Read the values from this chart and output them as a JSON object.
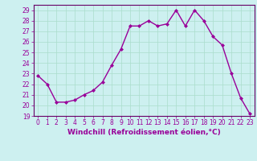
{
  "x": [
    0,
    1,
    2,
    3,
    4,
    5,
    6,
    7,
    8,
    9,
    10,
    11,
    12,
    13,
    14,
    15,
    16,
    17,
    18,
    19,
    20,
    21,
    22,
    23
  ],
  "y": [
    22.8,
    22.0,
    20.3,
    20.3,
    20.5,
    21.0,
    21.4,
    22.2,
    23.8,
    25.3,
    27.5,
    27.5,
    28.0,
    27.5,
    27.7,
    29.0,
    27.5,
    29.0,
    28.0,
    26.5,
    25.7,
    23.0,
    20.7,
    19.2
  ],
  "line_color": "#990099",
  "marker": "D",
  "markersize": 2.0,
  "linewidth": 1.0,
  "xlim": [
    -0.5,
    23.5
  ],
  "ylim": [
    19,
    29.5
  ],
  "yticks": [
    19,
    20,
    21,
    22,
    23,
    24,
    25,
    26,
    27,
    28,
    29
  ],
  "xticks": [
    0,
    1,
    2,
    3,
    4,
    5,
    6,
    7,
    8,
    9,
    10,
    11,
    12,
    13,
    14,
    15,
    16,
    17,
    18,
    19,
    20,
    21,
    22,
    23
  ],
  "xlabel": "Windchill (Refroidissement éolien,°C)",
  "xlabel_fontsize": 6.5,
  "tick_fontsize": 5.5,
  "bg_color": "#cdf0f0",
  "grid_color": "#aaddcc",
  "spine_color": "#660066",
  "label_color": "#990099"
}
